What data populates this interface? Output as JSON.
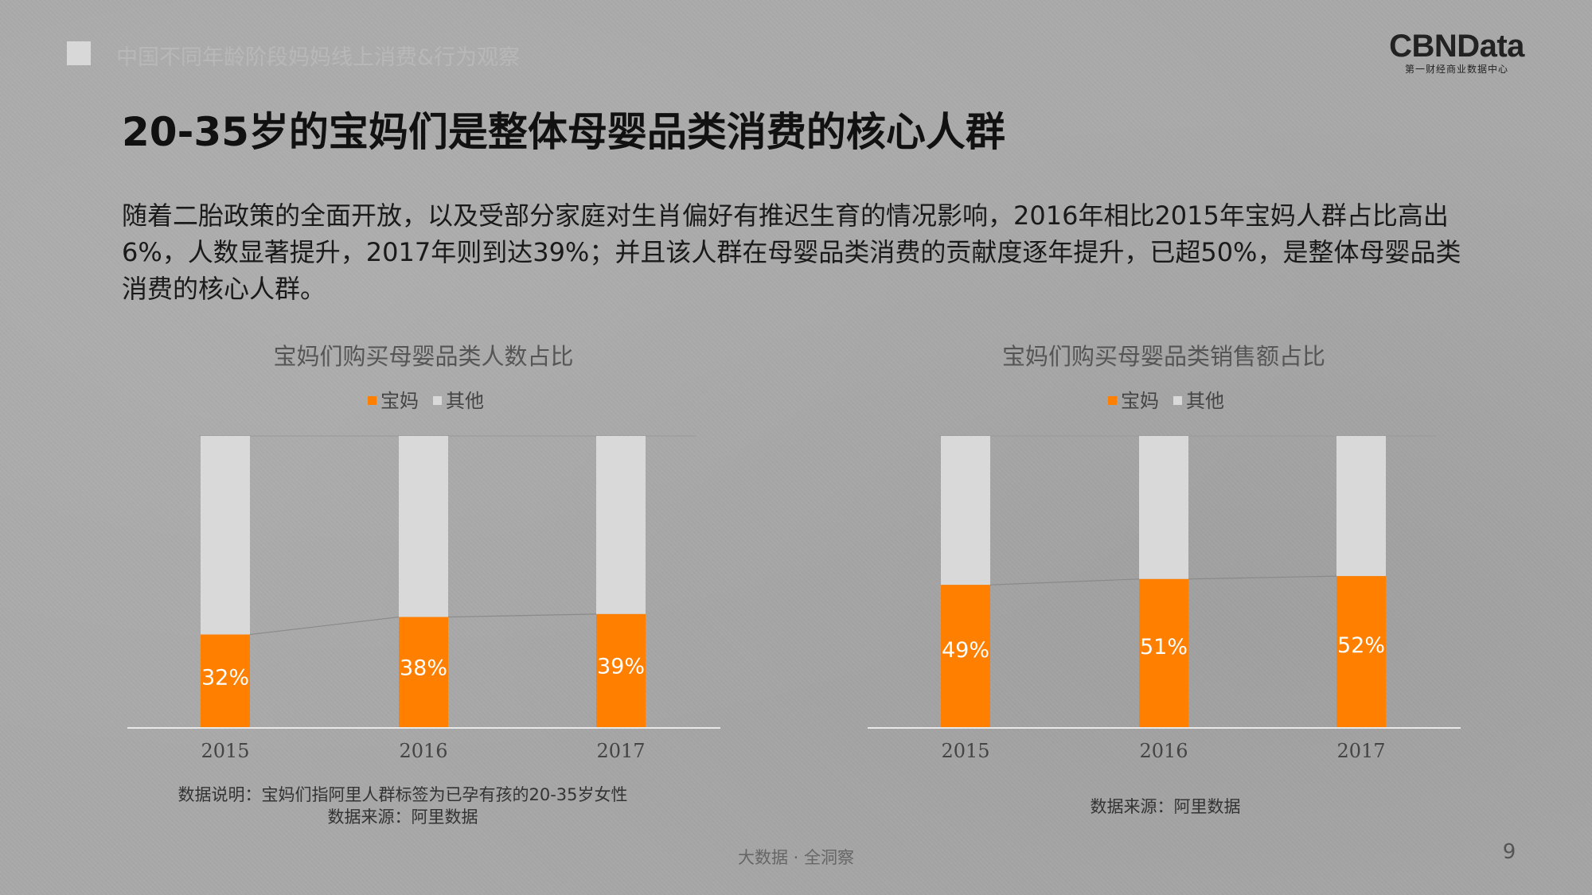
{
  "header": {
    "section_title": "中国不同年龄阶段妈妈线上消费&行为观察",
    "logo_main": "CBNData",
    "logo_sub": "第一财经商业数据中心"
  },
  "title": "20-35岁的宝妈们是整体母婴品类消费的核心人群",
  "description": "随着二胎政策的全面开放，以及受部分家庭对生肖偏好有推迟生育的情况影响，2016年相比2015年宝妈人群占比高出6%，人数显著提升，2017年则到达39%；并且该人群在母婴品类消费的贡献度逐年提升，已超50%，是整体母婴品类消费的核心人群。",
  "colors": {
    "primary": "#ff7f00",
    "other": "#d9d9d9"
  },
  "chart_data": [
    {
      "type": "bar",
      "stacked": true,
      "title": "宝妈们购买母婴品类人数占比",
      "categories": [
        "2015",
        "2016",
        "2017"
      ],
      "series": [
        {
          "name": "宝妈",
          "values": [
            32,
            38,
            39
          ],
          "labels": [
            "32%",
            "38%",
            "39%"
          ]
        },
        {
          "name": "其他",
          "values": [
            68,
            62,
            61
          ]
        }
      ],
      "ylim": [
        0,
        100
      ],
      "legend": "top",
      "connector_line": true,
      "notes": [
        "数据说明：宝妈们指阿里人群标签为已孕有孩的20-35岁女性",
        "数据来源：阿里数据"
      ]
    },
    {
      "type": "bar",
      "stacked": true,
      "title": "宝妈们购买母婴品类销售额占比",
      "categories": [
        "2015",
        "2016",
        "2017"
      ],
      "series": [
        {
          "name": "宝妈",
          "values": [
            49,
            51,
            52
          ],
          "labels": [
            "49%",
            "51%",
            "52%"
          ]
        },
        {
          "name": "其他",
          "values": [
            51,
            49,
            48
          ]
        }
      ],
      "ylim": [
        0,
        100
      ],
      "legend": "top",
      "connector_line": true,
      "notes": [
        "数据来源：阿里数据"
      ]
    }
  ],
  "footer": {
    "tagline": "大数据 · 全洞察",
    "page_number": "9"
  }
}
